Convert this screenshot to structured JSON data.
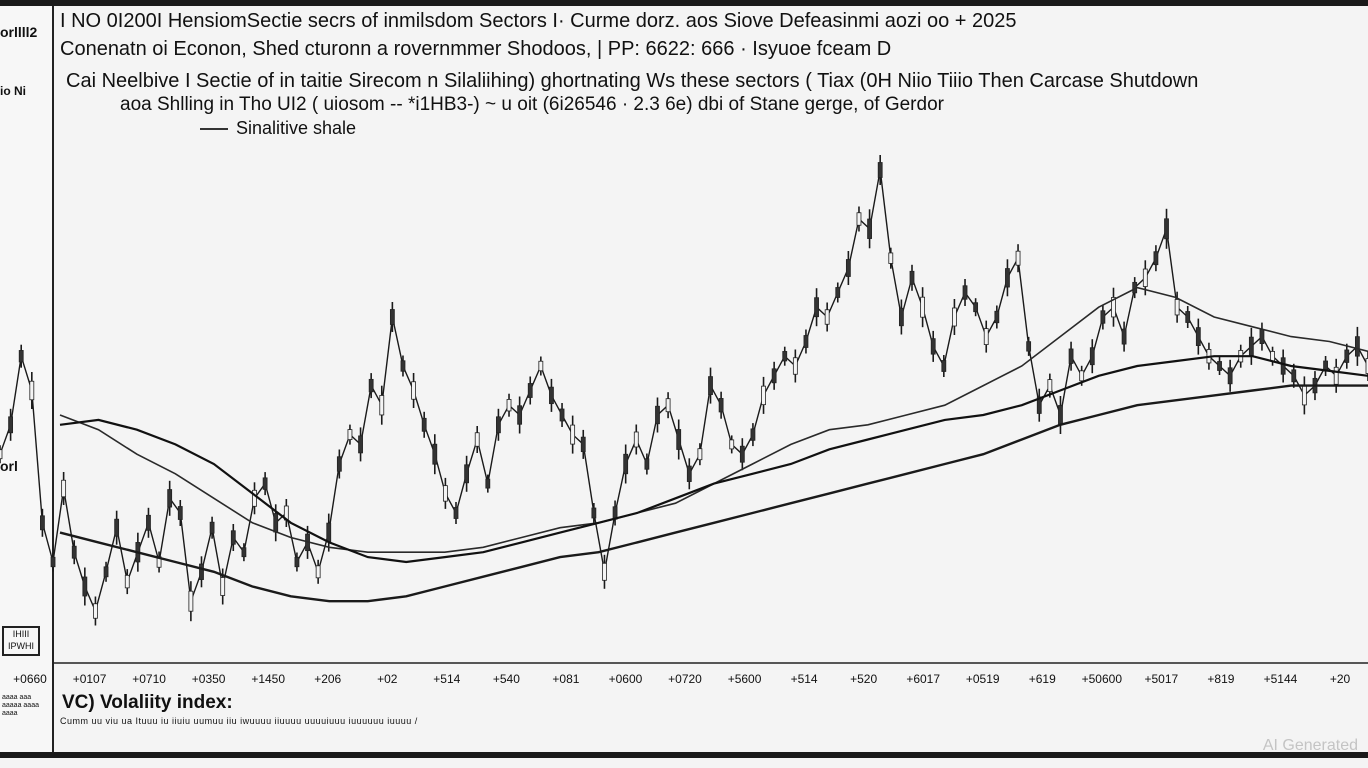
{
  "header": {
    "title1": "I NO 0I200I HensiomSectie secrs of inmilsdom Sectors   I·   Curme dorz. aos   Siove Defeasinmi aozi oo + 2025",
    "title2": "Conenatn  oi  Econon, Shed cturonn a rovernmmer Shodoos, | PP: 6622: 666 · Isyuoe fceam  D",
    "subtitle1": "Cai Neelbive I Sectie of in taitie Sirecom n Silaliihing) ghortnating Ws these sectors ( Tiax (0H Niio Tiiio Then Carcase Shutdown",
    "subtitle2": "aoa Shlling in Tho UI2 ( uiosom -- *i1HB3-) ~ u oit  (6i26546 · 2.3 6e) dbi of Stane gerge, of Gerdor",
    "legend_label": "Sinalitive shale"
  },
  "left_rail": {
    "tag_top": "orllll2",
    "tag_mid": "io Ni",
    "tag_low": "orl",
    "boxed": "IHIII IPWHI",
    "small_text": "aaaa aaa aaaaa aaaa aaaa"
  },
  "footer": {
    "bottom_title": "VC) Volaliity index:",
    "bottom_note": "Cumm uu viu ua Ituuu iu iiuiu uumuu iiu iwuuuu iiuuuu uuuuiuuu iuuuuuu iuuuu  /",
    "watermark": "AI Generated"
  },
  "colors": {
    "series": "#1a1a1a",
    "ma1": "#2a2a2a",
    "ma2": "#111111",
    "ma3": "#1a1a1a",
    "background": "#f4f4f4"
  },
  "chart_data": {
    "type": "line",
    "title": "I NO 0I200I HensiomSectie secrs of inmilsdom Sectors",
    "x_tick_labels": [
      "+0660",
      "+0107",
      "+0710",
      "+0350",
      "+1450",
      "+206",
      "+02",
      "+514",
      "+540",
      "+081",
      "+0600",
      "+0720",
      "+5600",
      "+514",
      "+520",
      "+6017",
      "+0519",
      "+619",
      "+50600",
      "+5017",
      "+819",
      "+5144",
      "+20"
    ],
    "grid": false,
    "legend": "top-left",
    "series": [
      {
        "name": "Sinalitive shale",
        "values": [
          0.42,
          0.48,
          0.62,
          0.55,
          0.28,
          0.2,
          0.35,
          0.22,
          0.15,
          0.1,
          0.18,
          0.27,
          0.16,
          0.22,
          0.28,
          0.2,
          0.33,
          0.3,
          0.12,
          0.18,
          0.27,
          0.15,
          0.25,
          0.22,
          0.33,
          0.36,
          0.28,
          0.3,
          0.2,
          0.24,
          0.18,
          0.26,
          0.4,
          0.46,
          0.44,
          0.56,
          0.52,
          0.7,
          0.6,
          0.55,
          0.48,
          0.42,
          0.34,
          0.3,
          0.38,
          0.45,
          0.36,
          0.48,
          0.52,
          0.5,
          0.55,
          0.6,
          0.54,
          0.5,
          0.46,
          0.44,
          0.3,
          0.18,
          0.3,
          0.4,
          0.45,
          0.4,
          0.5,
          0.52,
          0.45,
          0.38,
          0.42,
          0.56,
          0.52,
          0.44,
          0.42,
          0.46,
          0.54,
          0.58,
          0.62,
          0.6,
          0.65,
          0.72,
          0.7,
          0.75,
          0.8,
          0.9,
          0.88,
          1.0,
          0.82,
          0.7,
          0.78,
          0.72,
          0.64,
          0.6,
          0.7,
          0.75,
          0.72,
          0.66,
          0.7,
          0.78,
          0.82,
          0.64,
          0.52,
          0.56,
          0.5,
          0.62,
          0.58,
          0.62,
          0.7,
          0.72,
          0.66,
          0.76,
          0.78,
          0.82,
          0.88,
          0.72,
          0.7,
          0.66,
          0.62,
          0.6,
          0.58,
          0.62,
          0.64,
          0.66,
          0.62,
          0.6,
          0.58,
          0.54,
          0.56,
          0.6,
          0.58,
          0.62,
          0.64,
          0.6
        ]
      },
      {
        "name": "",
        "values": [
          0.5,
          0.47,
          0.42,
          0.38,
          0.33,
          0.28,
          0.25,
          0.23,
          0.22,
          0.22,
          0.22,
          0.23,
          0.25,
          0.27,
          0.28,
          0.3,
          0.32,
          0.36,
          0.4,
          0.44,
          0.47,
          0.48,
          0.5,
          0.52,
          0.56,
          0.6,
          0.66,
          0.72,
          0.76,
          0.74,
          0.7,
          0.68,
          0.66,
          0.65,
          0.63
        ]
      },
      {
        "name": "",
        "values": [
          0.48,
          0.49,
          0.47,
          0.44,
          0.4,
          0.34,
          0.28,
          0.24,
          0.21,
          0.2,
          0.21,
          0.22,
          0.24,
          0.26,
          0.28,
          0.3,
          0.33,
          0.36,
          0.38,
          0.4,
          0.43,
          0.45,
          0.47,
          0.49,
          0.5,
          0.52,
          0.55,
          0.58,
          0.6,
          0.61,
          0.62,
          0.62,
          0.6,
          0.59,
          0.58
        ]
      },
      {
        "name": "",
        "values": [
          0.26,
          0.24,
          0.22,
          0.2,
          0.18,
          0.15,
          0.13,
          0.12,
          0.12,
          0.13,
          0.15,
          0.17,
          0.19,
          0.21,
          0.22,
          0.24,
          0.26,
          0.28,
          0.3,
          0.32,
          0.34,
          0.36,
          0.38,
          0.4,
          0.42,
          0.45,
          0.48,
          0.5,
          0.52,
          0.53,
          0.54,
          0.55,
          0.56,
          0.56,
          0.56
        ]
      }
    ]
  }
}
